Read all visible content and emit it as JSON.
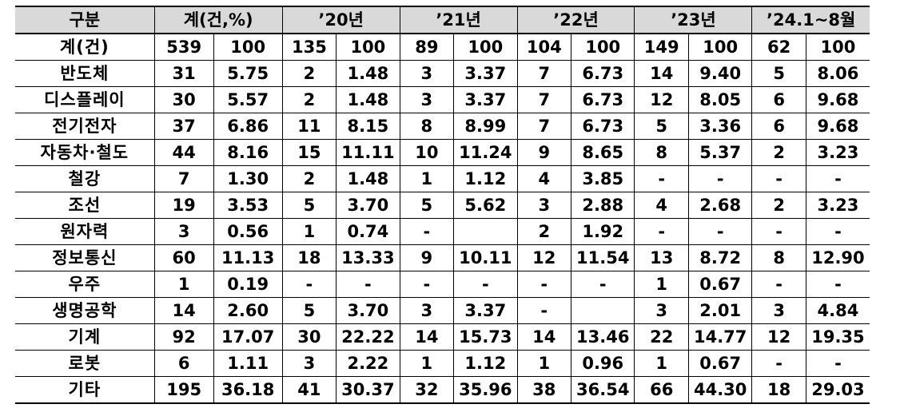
{
  "header": {
    "category": "구분",
    "groups": [
      "계(건,%)",
      "’20년",
      "’21년",
      "’22년",
      "’23년",
      "’24.1~8월"
    ]
  },
  "rows": [
    {
      "label": "계(건)",
      "cells": [
        "539",
        "100",
        "135",
        "100",
        "89",
        "100",
        "104",
        "100",
        "149",
        "100",
        "62",
        "100"
      ]
    },
    {
      "label": "반도체",
      "cells": [
        "31",
        "5.75",
        "2",
        "1.48",
        "3",
        "3.37",
        "7",
        "6.73",
        "14",
        "9.40",
        "5",
        "8.06"
      ]
    },
    {
      "label": "디스플레이",
      "cells": [
        "30",
        "5.57",
        "2",
        "1.48",
        "3",
        "3.37",
        "7",
        "6.73",
        "12",
        "8.05",
        "6",
        "9.68"
      ]
    },
    {
      "label": "전기전자",
      "cells": [
        "37",
        "6.86",
        "11",
        "8.15",
        "8",
        "8.99",
        "7",
        "6.73",
        "5",
        "3.36",
        "6",
        "9.68"
      ]
    },
    {
      "label": "자동차·철도",
      "cells": [
        "44",
        "8.16",
        "15",
        "11.11",
        "10",
        "11.24",
        "9",
        "8.65",
        "8",
        "5.37",
        "2",
        "3.23"
      ]
    },
    {
      "label": "철강",
      "cells": [
        "7",
        "1.30",
        "2",
        "1.48",
        "1",
        "1.12",
        "4",
        "3.85",
        "-",
        "-",
        "-",
        "-"
      ]
    },
    {
      "label": "조선",
      "cells": [
        "19",
        "3.53",
        "5",
        "3.70",
        "5",
        "5.62",
        "3",
        "2.88",
        "4",
        "2.68",
        "2",
        "3.23"
      ]
    },
    {
      "label": "원자력",
      "cells": [
        "3",
        "0.56",
        "1",
        "0.74",
        "-",
        "",
        "2",
        "1.92",
        "-",
        "-",
        "-",
        "-"
      ]
    },
    {
      "label": "정보통신",
      "cells": [
        "60",
        "11.13",
        "18",
        "13.33",
        "9",
        "10.11",
        "12",
        "11.54",
        "13",
        "8.72",
        "8",
        "12.90"
      ]
    },
    {
      "label": "우주",
      "cells": [
        "1",
        "0.19",
        "-",
        "-",
        "-",
        "-",
        "-",
        "-",
        "1",
        "0.67",
        "-",
        "-"
      ]
    },
    {
      "label": "생명공학",
      "cells": [
        "14",
        "2.60",
        "5",
        "3.70",
        "3",
        "3.37",
        "-",
        "",
        "3",
        "2.01",
        "3",
        "4.84"
      ]
    },
    {
      "label": "기계",
      "cells": [
        "92",
        "17.07",
        "30",
        "22.22",
        "14",
        "15.73",
        "14",
        "13.46",
        "22",
        "14.77",
        "12",
        "19.35"
      ]
    },
    {
      "label": "로봇",
      "cells": [
        "6",
        "1.11",
        "3",
        "2.22",
        "1",
        "1.12",
        "1",
        "0.96",
        "1",
        "0.67",
        "-",
        "-"
      ]
    },
    {
      "label": "기타",
      "cells": [
        "195",
        "36.18",
        "41",
        "30.37",
        "32",
        "35.96",
        "38",
        "36.54",
        "66",
        "44.30",
        "18",
        "29.03"
      ]
    }
  ]
}
